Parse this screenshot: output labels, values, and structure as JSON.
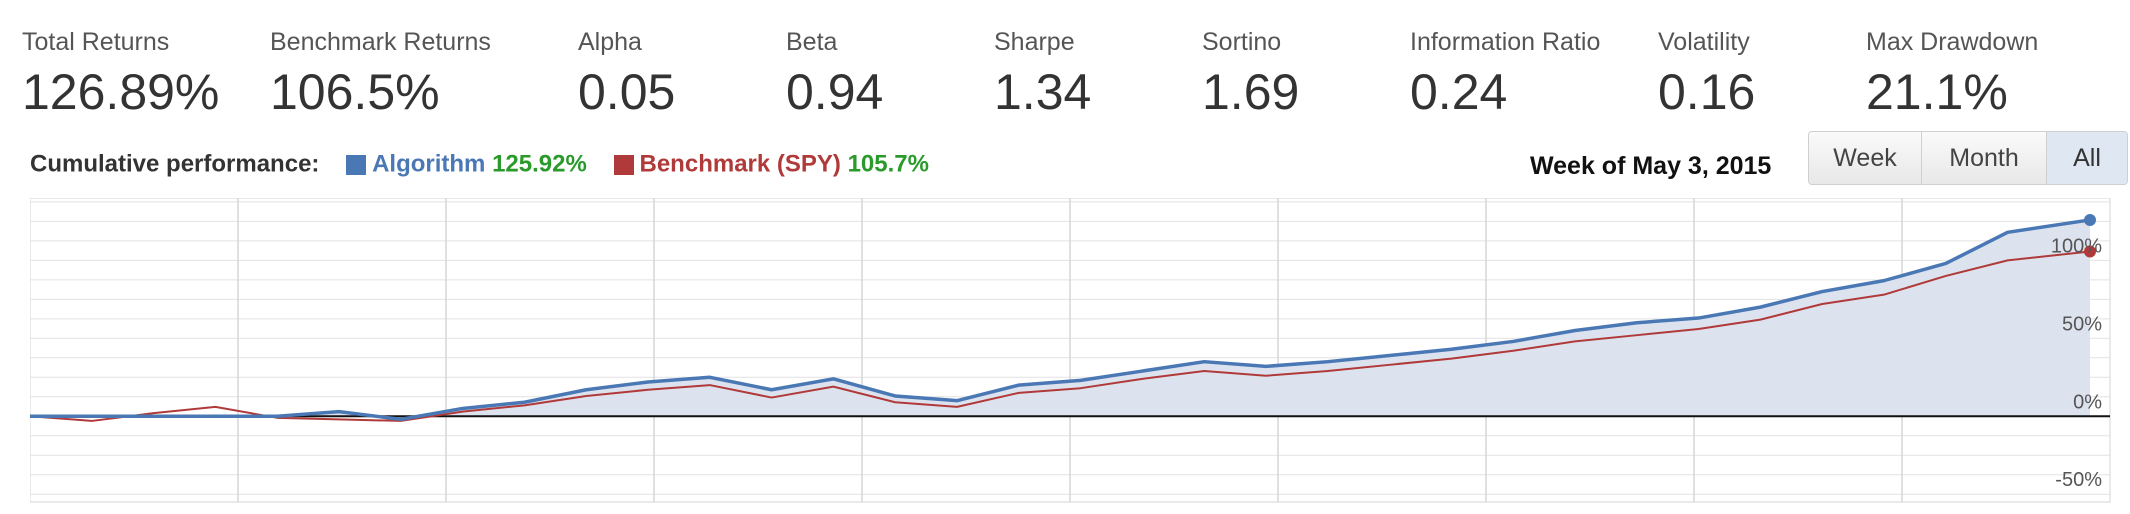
{
  "metrics": [
    {
      "label": "Total Returns",
      "value": "126.89%"
    },
    {
      "label": "Benchmark Returns",
      "value": "106.5%"
    },
    {
      "label": "Alpha",
      "value": "0.05"
    },
    {
      "label": "Beta",
      "value": "0.94"
    },
    {
      "label": "Sharpe",
      "value": "1.34"
    },
    {
      "label": "Sortino",
      "value": "1.69"
    },
    {
      "label": "Information Ratio",
      "value": "0.24"
    },
    {
      "label": "Volatility",
      "value": "0.16"
    },
    {
      "label": "Max Drawdown",
      "value": "21.1%"
    }
  ],
  "legend": {
    "title": "Cumulative performance:",
    "algo_label": "Algorithm",
    "algo_value": "125.92%",
    "bench_label": "Benchmark (SPY)",
    "bench_value": "105.7%"
  },
  "week_label": "Week of May 3, 2015",
  "range_buttons": {
    "week": "Week",
    "month": "Month",
    "all": "All",
    "selected": "All"
  },
  "colors": {
    "algorithm": "#4a78b5",
    "benchmark": "#b03a3a",
    "positive": "#2a9a2a",
    "fill": "#dde3ee",
    "grid": "#e2e2e2",
    "zero": "#111111"
  },
  "chart_data": {
    "type": "line",
    "yticks": [
      "-50%",
      "0%",
      "50%",
      "100%"
    ],
    "ylim": [
      -55,
      140
    ],
    "grid": true,
    "series": [
      {
        "name": "Algorithm",
        "x": [
          0,
          3,
          6,
          9,
          12,
          15,
          18,
          21,
          24,
          27,
          30,
          33,
          36,
          39,
          42,
          45,
          48,
          51,
          54,
          57,
          60,
          63,
          66,
          69,
          72,
          75,
          78,
          81,
          84,
          87,
          90,
          93,
          96,
          100
        ],
        "values": [
          0,
          0,
          0,
          0,
          0,
          3,
          -2,
          5,
          9,
          17,
          22,
          25,
          17,
          24,
          13,
          10,
          20,
          23,
          29,
          35,
          32,
          35,
          39,
          43,
          48,
          55,
          60,
          63,
          70,
          80,
          87,
          98,
          118,
          125.92
        ]
      },
      {
        "name": "Benchmark (SPY)",
        "x": [
          0,
          3,
          6,
          9,
          12,
          15,
          18,
          21,
          24,
          27,
          30,
          33,
          36,
          39,
          42,
          45,
          48,
          51,
          54,
          57,
          60,
          63,
          66,
          69,
          72,
          75,
          78,
          81,
          84,
          87,
          90,
          93,
          96,
          100
        ],
        "values": [
          0,
          -3,
          2,
          6,
          -1,
          -2,
          -3,
          3,
          7,
          13,
          17,
          20,
          12,
          19,
          9,
          6,
          15,
          18,
          24,
          29,
          26,
          29,
          33,
          37,
          42,
          48,
          52,
          56,
          62,
          72,
          78,
          90,
          100,
          105.7
        ]
      }
    ]
  }
}
